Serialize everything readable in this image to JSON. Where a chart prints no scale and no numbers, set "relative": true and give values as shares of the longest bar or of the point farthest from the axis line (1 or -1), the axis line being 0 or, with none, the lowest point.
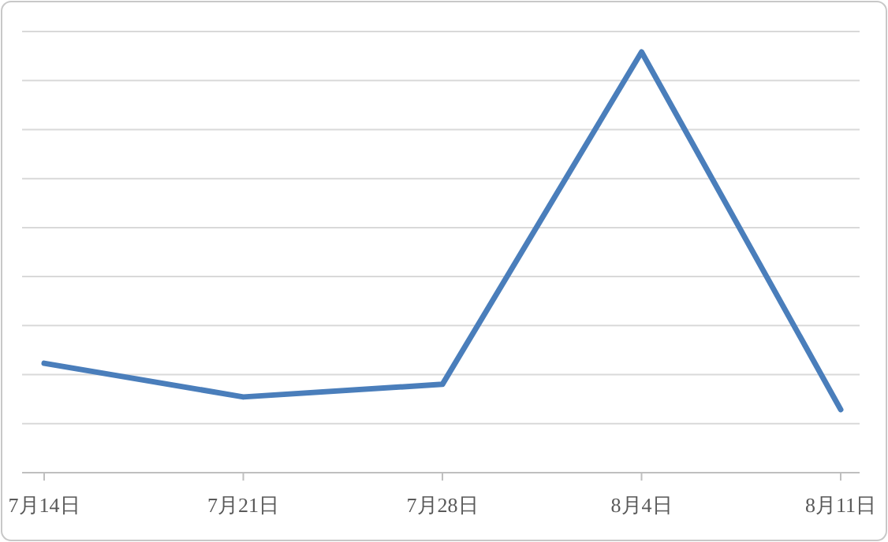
{
  "chart_data": {
    "type": "line",
    "relative": true,
    "categories": [
      "7月14日",
      "7月21日",
      "7月28日",
      "8月4日",
      "8月11日"
    ],
    "series": [
      {
        "color": "#4a7ebb",
        "values": [
          0.26,
          0.18,
          0.21,
          1,
          0.15
        ]
      }
    ],
    "grid": "y",
    "marker": "none",
    "line_style": "solid"
  }
}
